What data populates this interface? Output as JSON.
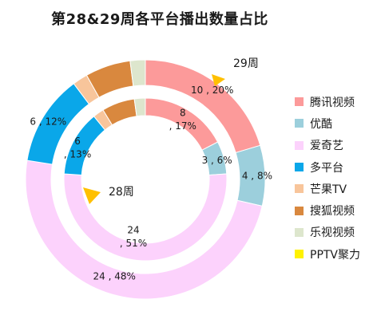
{
  "chart_data": {
    "type": "donut",
    "title": "第28&29周各平台播出数量占比",
    "categories": [
      "腾讯视频",
      "优酷",
      "爱奇艺",
      "多平台",
      "芒果TV",
      "搜狐视频",
      "乐视视频",
      "PPTV聚力"
    ],
    "colors": [
      "#fc9a9a",
      "#9ccfdc",
      "#fcd2fc",
      "#0aa7e9",
      "#f8c59b",
      "#d9883e",
      "#dde6cd",
      "#fff200"
    ],
    "series": [
      {
        "name": "29周",
        "ring": "outer",
        "values": [
          10,
          4,
          24,
          6,
          1,
          3,
          1,
          0
        ],
        "percents": [
          "20%",
          "8%",
          "48%",
          "12%",
          "",
          "",
          "",
          ""
        ],
        "labels": [
          "10 , 20%",
          "4 , 8%",
          "24 , 48%",
          "6 , 12%",
          "",
          "",
          "",
          ""
        ]
      },
      {
        "name": "28周",
        "ring": "inner",
        "values": [
          8,
          3,
          24,
          6,
          1,
          3,
          1,
          0
        ],
        "percents": [
          "17%",
          "6%",
          "51%",
          "13%",
          "",
          "",
          "",
          ""
        ],
        "labels": [
          "8\n, 17%",
          "3 , 6%",
          "24\n, 51%",
          "6\n, 13%",
          "",
          "",
          "",
          ""
        ]
      }
    ],
    "legend_position": "right"
  }
}
